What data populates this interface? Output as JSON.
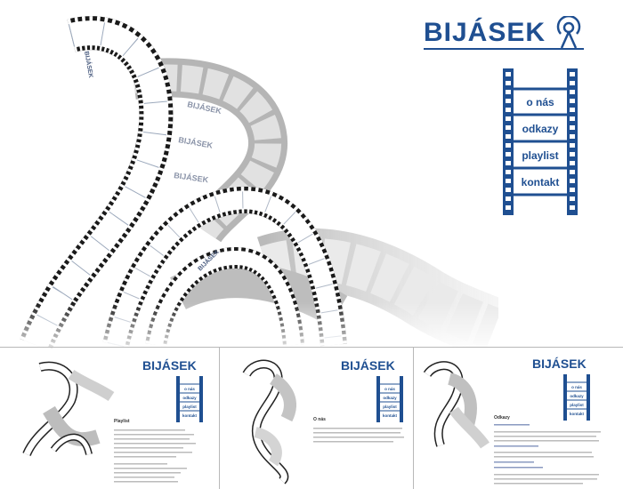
{
  "brand": {
    "name": "BIJÁSEK",
    "color": "#1f4f91"
  },
  "film_label": "BIJÁSEK",
  "nav": {
    "items": [
      {
        "label": "o nás"
      },
      {
        "label": "odkazy"
      },
      {
        "label": "playlist"
      },
      {
        "label": "kontakt"
      }
    ]
  },
  "thumbnails": [
    {
      "page_title": "Playlist"
    },
    {
      "page_title": "O nás"
    },
    {
      "page_title": "Odkazy"
    }
  ],
  "icons": [
    "antenna-icon",
    "film-strip-icon"
  ]
}
